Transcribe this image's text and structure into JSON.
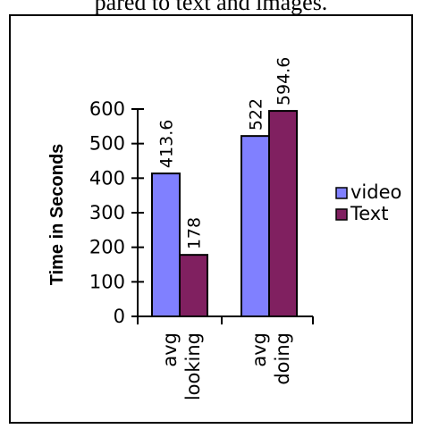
{
  "caption": "pared to text and images.",
  "chart_data": {
    "type": "bar",
    "title": "",
    "ylabel": "Time in Seconds",
    "xlabel": "",
    "ylim": [
      0,
      600
    ],
    "yticks": [
      0,
      100,
      200,
      300,
      400,
      500,
      600
    ],
    "categories": [
      [
        "avg",
        "looking"
      ],
      [
        "avg",
        "doing"
      ]
    ],
    "series": [
      {
        "name": "video",
        "color": "#8080ff",
        "values": [
          413.6,
          522
        ]
      },
      {
        "name": "Text",
        "color": "#802060",
        "values": [
          178,
          594.6
        ]
      }
    ],
    "data_labels": [
      [
        "413.6",
        "522"
      ],
      [
        "178",
        "594.6"
      ]
    ],
    "legend_position": "right",
    "grid": false
  }
}
